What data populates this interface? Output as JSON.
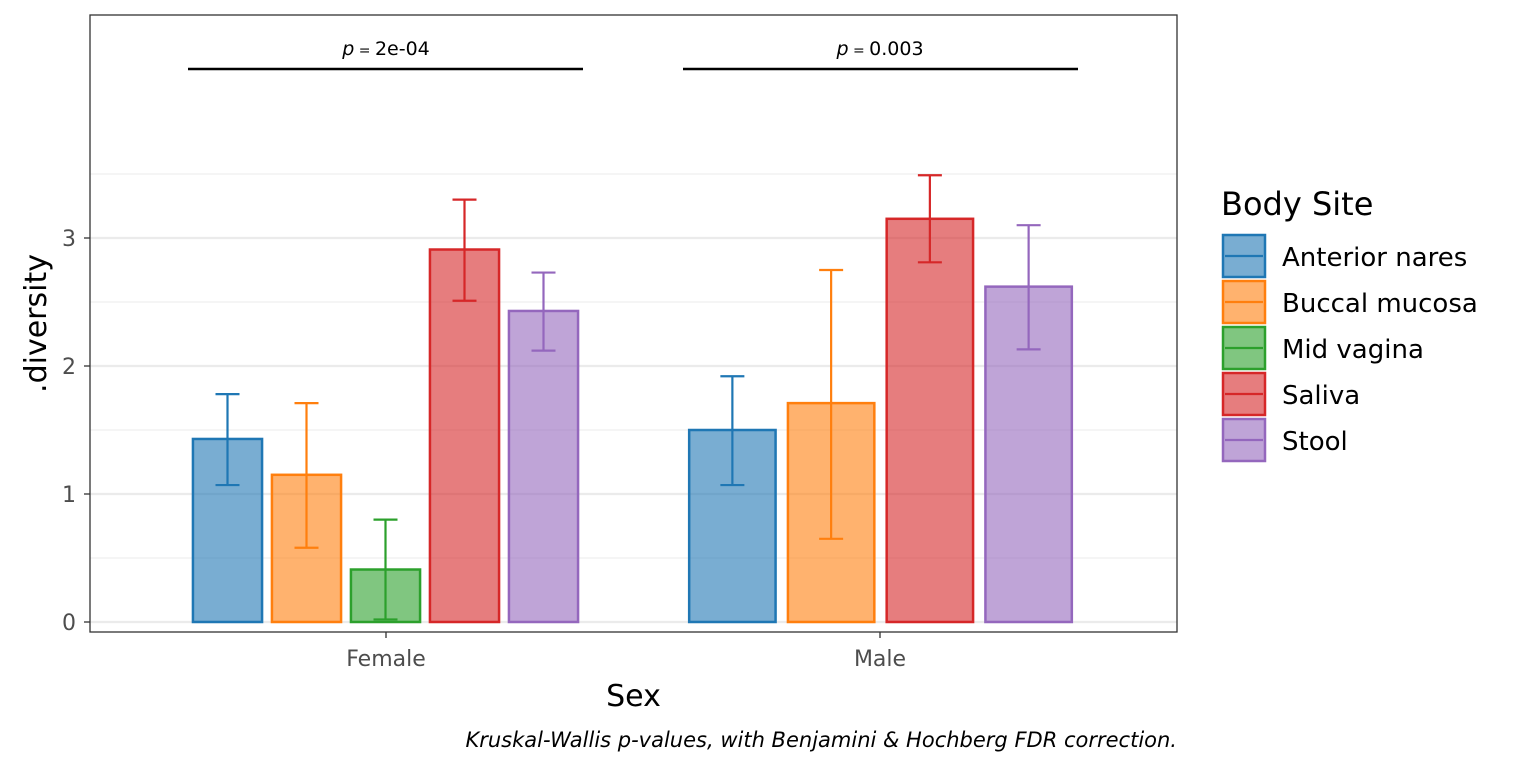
{
  "chart_data": {
    "type": "bar",
    "xlabel": "Sex",
    "ylabel": ".diversity",
    "caption": "Kruskal-Wallis p-values, with Benjamini & Hochberg FDR correction.",
    "ylim": [
      -0.07,
      4.7
    ],
    "yticks": [
      0,
      1,
      2,
      3
    ],
    "grid": true,
    "legend": {
      "title": "Body Site",
      "placement": "right",
      "entries": [
        "Anterior nares",
        "Buccal mucosa",
        "Mid vagina",
        "Saliva",
        "Stool"
      ]
    },
    "colors": {
      "Anterior nares": "#1f77b4",
      "Buccal mucosa": "#ff7f0e",
      "Mid vagina": "#2ca02c",
      "Saliva": "#d62728",
      "Stool": "#9467bd"
    },
    "categories": [
      "Female",
      "Male"
    ],
    "groups": [
      {
        "category": "Female",
        "pvalue": {
          "prefix": "p",
          "value": "2e-04"
        },
        "bars": [
          {
            "series": "Anterior nares",
            "value": 1.43,
            "lower": 1.07,
            "upper": 1.78
          },
          {
            "series": "Buccal mucosa",
            "value": 1.15,
            "lower": 0.58,
            "upper": 1.71
          },
          {
            "series": "Mid vagina",
            "value": 0.41,
            "lower": 0.02,
            "upper": 0.8
          },
          {
            "series": "Saliva",
            "value": 2.91,
            "lower": 2.51,
            "upper": 3.3
          },
          {
            "series": "Stool",
            "value": 2.43,
            "lower": 2.12,
            "upper": 2.73
          }
        ]
      },
      {
        "category": "Male",
        "pvalue": {
          "prefix": "p",
          "value": "0.003"
        },
        "bars": [
          {
            "series": "Anterior nares",
            "value": 1.5,
            "lower": 1.07,
            "upper": 1.92
          },
          {
            "series": "Buccal mucosa",
            "value": 1.71,
            "lower": 0.65,
            "upper": 2.75
          },
          {
            "series": "Saliva",
            "value": 3.15,
            "lower": 2.81,
            "upper": 3.49
          },
          {
            "series": "Stool",
            "value": 2.62,
            "lower": 2.13,
            "upper": 3.1
          }
        ]
      }
    ]
  }
}
